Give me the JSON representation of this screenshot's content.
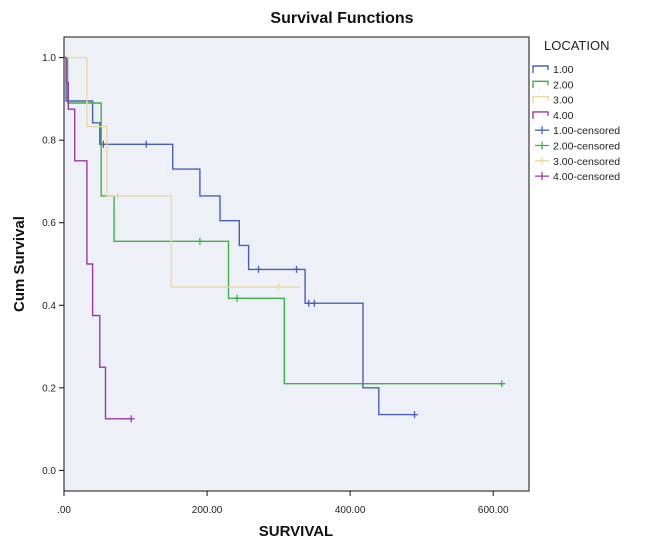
{
  "chart_data": {
    "type": "line",
    "title": "Survival Functions",
    "xlabel": "SURVIVAL",
    "ylabel": "Cum Survival",
    "xlim": [
      0,
      650
    ],
    "ylim": [
      -0.05,
      1.05
    ],
    "x_ticks": [
      {
        "value": 0,
        "label": ".00"
      },
      {
        "value": 200,
        "label": "200.00"
      },
      {
        "value": 400,
        "label": "400.00"
      },
      {
        "value": 600,
        "label": "600.00"
      }
    ],
    "y_ticks": [
      {
        "value": 0.0,
        "label": "0.0"
      },
      {
        "value": 0.2,
        "label": "0.2"
      },
      {
        "value": 0.4,
        "label": "0.4"
      },
      {
        "value": 0.6,
        "label": "0.6"
      },
      {
        "value": 0.8,
        "label": "0.8"
      },
      {
        "value": 1.0,
        "label": "1.0"
      }
    ],
    "legend": {
      "title": "LOCATION",
      "placement": "right",
      "entries": [
        {
          "label": "1.00",
          "marker": "step",
          "color": "#4a5fb4"
        },
        {
          "label": "2.00",
          "marker": "step",
          "color": "#3fae48"
        },
        {
          "label": "3.00",
          "marker": "step",
          "color": "#e8d9a0"
        },
        {
          "label": "4.00",
          "marker": "step",
          "color": "#9a3aa0"
        },
        {
          "label": "1.00-censored",
          "marker": "plus",
          "color": "#4a5fb4"
        },
        {
          "label": "2.00-censored",
          "marker": "plus",
          "color": "#3fae48"
        },
        {
          "label": "3.00-censored",
          "marker": "plus",
          "color": "#e8d9a0"
        },
        {
          "label": "4.00-censored",
          "marker": "plus",
          "color": "#9a3aa0"
        }
      ]
    },
    "series": [
      {
        "name": "1.00",
        "color": "#4a5fb4",
        "steps": [
          [
            0,
            1.0
          ],
          [
            3,
            0.895
          ],
          [
            40,
            0.842
          ],
          [
            50,
            0.79
          ],
          [
            152,
            0.73
          ],
          [
            190,
            0.665
          ],
          [
            218,
            0.605
          ],
          [
            245,
            0.545
          ],
          [
            258,
            0.487
          ],
          [
            337,
            0.405
          ],
          [
            418,
            0.2
          ],
          [
            440,
            0.135
          ],
          [
            490,
            0.135
          ]
        ],
        "censored": [
          [
            55,
            0.79
          ],
          [
            115,
            0.79
          ],
          [
            272,
            0.487
          ],
          [
            325,
            0.487
          ],
          [
            342,
            0.405
          ],
          [
            350,
            0.405
          ],
          [
            490,
            0.135
          ]
        ]
      },
      {
        "name": "2.00",
        "color": "#3fae48",
        "steps": [
          [
            0,
            1.0
          ],
          [
            5,
            0.89
          ],
          [
            52,
            0.665
          ],
          [
            70,
            0.555
          ],
          [
            230,
            0.417
          ],
          [
            308,
            0.21
          ],
          [
            612,
            0.21
          ]
        ],
        "censored": [
          [
            190,
            0.555
          ],
          [
            242,
            0.417
          ],
          [
            612,
            0.21
          ]
        ]
      },
      {
        "name": "3.00",
        "color": "#e8d9a0",
        "steps": [
          [
            0,
            1.0
          ],
          [
            32,
            0.833
          ],
          [
            60,
            0.665
          ],
          [
            150,
            0.444
          ],
          [
            330,
            0.444
          ]
        ],
        "censored": [
          [
            75,
            0.665
          ],
          [
            300,
            0.444
          ]
        ]
      },
      {
        "name": "4.00",
        "color": "#9a3aa0",
        "steps": [
          [
            0,
            1.0
          ],
          [
            3,
            0.94
          ],
          [
            6,
            0.875
          ],
          [
            15,
            0.75
          ],
          [
            32,
            0.5
          ],
          [
            40,
            0.375
          ],
          [
            50,
            0.25
          ],
          [
            58,
            0.125
          ],
          [
            94,
            0.125
          ]
        ],
        "censored": [
          [
            94,
            0.125
          ]
        ]
      }
    ]
  },
  "colors": {
    "plot_background": "#eef0f8",
    "plot_border": "#111111"
  }
}
